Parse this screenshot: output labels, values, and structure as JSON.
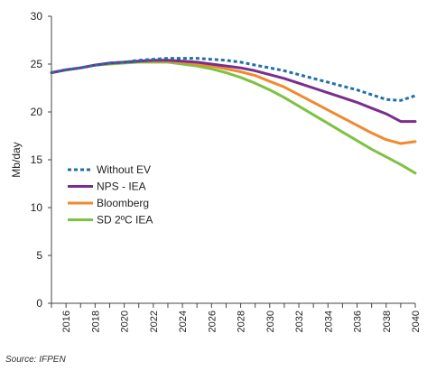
{
  "chart_data": {
    "type": "line",
    "title": "",
    "xlabel": "",
    "ylabel": "Mb/day",
    "xlim": [
      2015,
      2040
    ],
    "ylim": [
      0,
      30
    ],
    "yticks": [
      0,
      5,
      10,
      15,
      20,
      25,
      30
    ],
    "xticks": [
      2016,
      2018,
      2020,
      2022,
      2024,
      2026,
      2028,
      2030,
      2032,
      2034,
      2036,
      2038,
      2040
    ],
    "grid": false,
    "legend_position": "left",
    "x": [
      2015,
      2016,
      2017,
      2018,
      2019,
      2020,
      2021,
      2022,
      2023,
      2024,
      2025,
      2026,
      2027,
      2028,
      2029,
      2030,
      2031,
      2032,
      2033,
      2034,
      2035,
      2036,
      2037,
      2038,
      2039,
      2040
    ],
    "series": [
      {
        "name": "Without EV",
        "color": "#1f6fa8",
        "dash": true,
        "values": [
          24.1,
          24.4,
          24.6,
          24.9,
          25.1,
          25.2,
          25.4,
          25.5,
          25.6,
          25.6,
          25.6,
          25.5,
          25.4,
          25.2,
          24.9,
          24.6,
          24.3,
          23.9,
          23.5,
          23.1,
          22.7,
          22.3,
          21.8,
          21.3,
          21.2,
          21.7
        ]
      },
      {
        "name": "NPS - IEA",
        "color": "#7a2e8c",
        "dash": false,
        "values": [
          24.1,
          24.4,
          24.6,
          24.9,
          25.1,
          25.2,
          25.3,
          25.4,
          25.4,
          25.3,
          25.2,
          25.0,
          24.8,
          24.6,
          24.3,
          23.9,
          23.5,
          23.0,
          22.5,
          22.0,
          21.5,
          21.0,
          20.4,
          19.8,
          19.0,
          19.0
        ]
      },
      {
        "name": "Bloomberg",
        "color": "#f08a2e",
        "dash": false,
        "values": [
          24.1,
          24.4,
          24.6,
          24.9,
          25.1,
          25.2,
          25.3,
          25.3,
          25.3,
          25.2,
          25.0,
          24.8,
          24.5,
          24.2,
          23.8,
          23.2,
          22.6,
          21.8,
          21.0,
          20.2,
          19.4,
          18.6,
          17.8,
          17.1,
          16.7,
          16.9
        ]
      },
      {
        "name": "SD 2ºC IEA",
        "color": "#7dc242",
        "dash": false,
        "values": [
          24.1,
          24.4,
          24.6,
          24.9,
          25.0,
          25.1,
          25.2,
          25.2,
          25.2,
          25.0,
          24.8,
          24.5,
          24.1,
          23.6,
          23.0,
          22.3,
          21.5,
          20.6,
          19.7,
          18.8,
          17.9,
          17.0,
          16.1,
          15.3,
          14.5,
          13.6
        ]
      }
    ]
  },
  "source": "Source: IFPEN"
}
